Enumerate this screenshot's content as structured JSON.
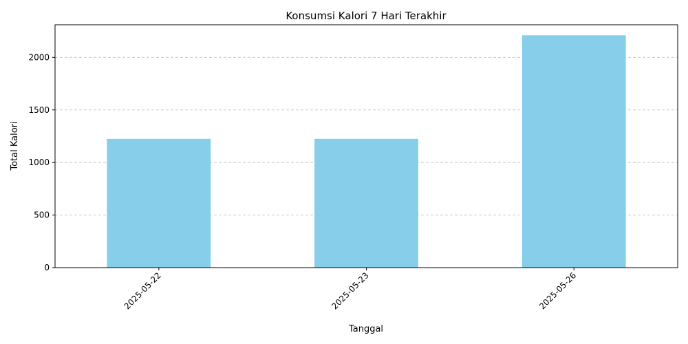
{
  "chart_data": {
    "type": "bar",
    "title": "Konsumsi Kalori 7 Hari Terakhir",
    "xlabel": "Tanggal",
    "ylabel": "Total Kalori",
    "categories": [
      "2025-05-22",
      "2025-05-23",
      "2025-05-26"
    ],
    "values": [
      1225,
      1225,
      2210
    ],
    "ylim": [
      0,
      2310
    ],
    "yticks": [
      0,
      500,
      1000,
      1500,
      2000
    ],
    "grid": "y-dashed",
    "bar_color": "#87ceeb",
    "tick_rotation": 45
  }
}
